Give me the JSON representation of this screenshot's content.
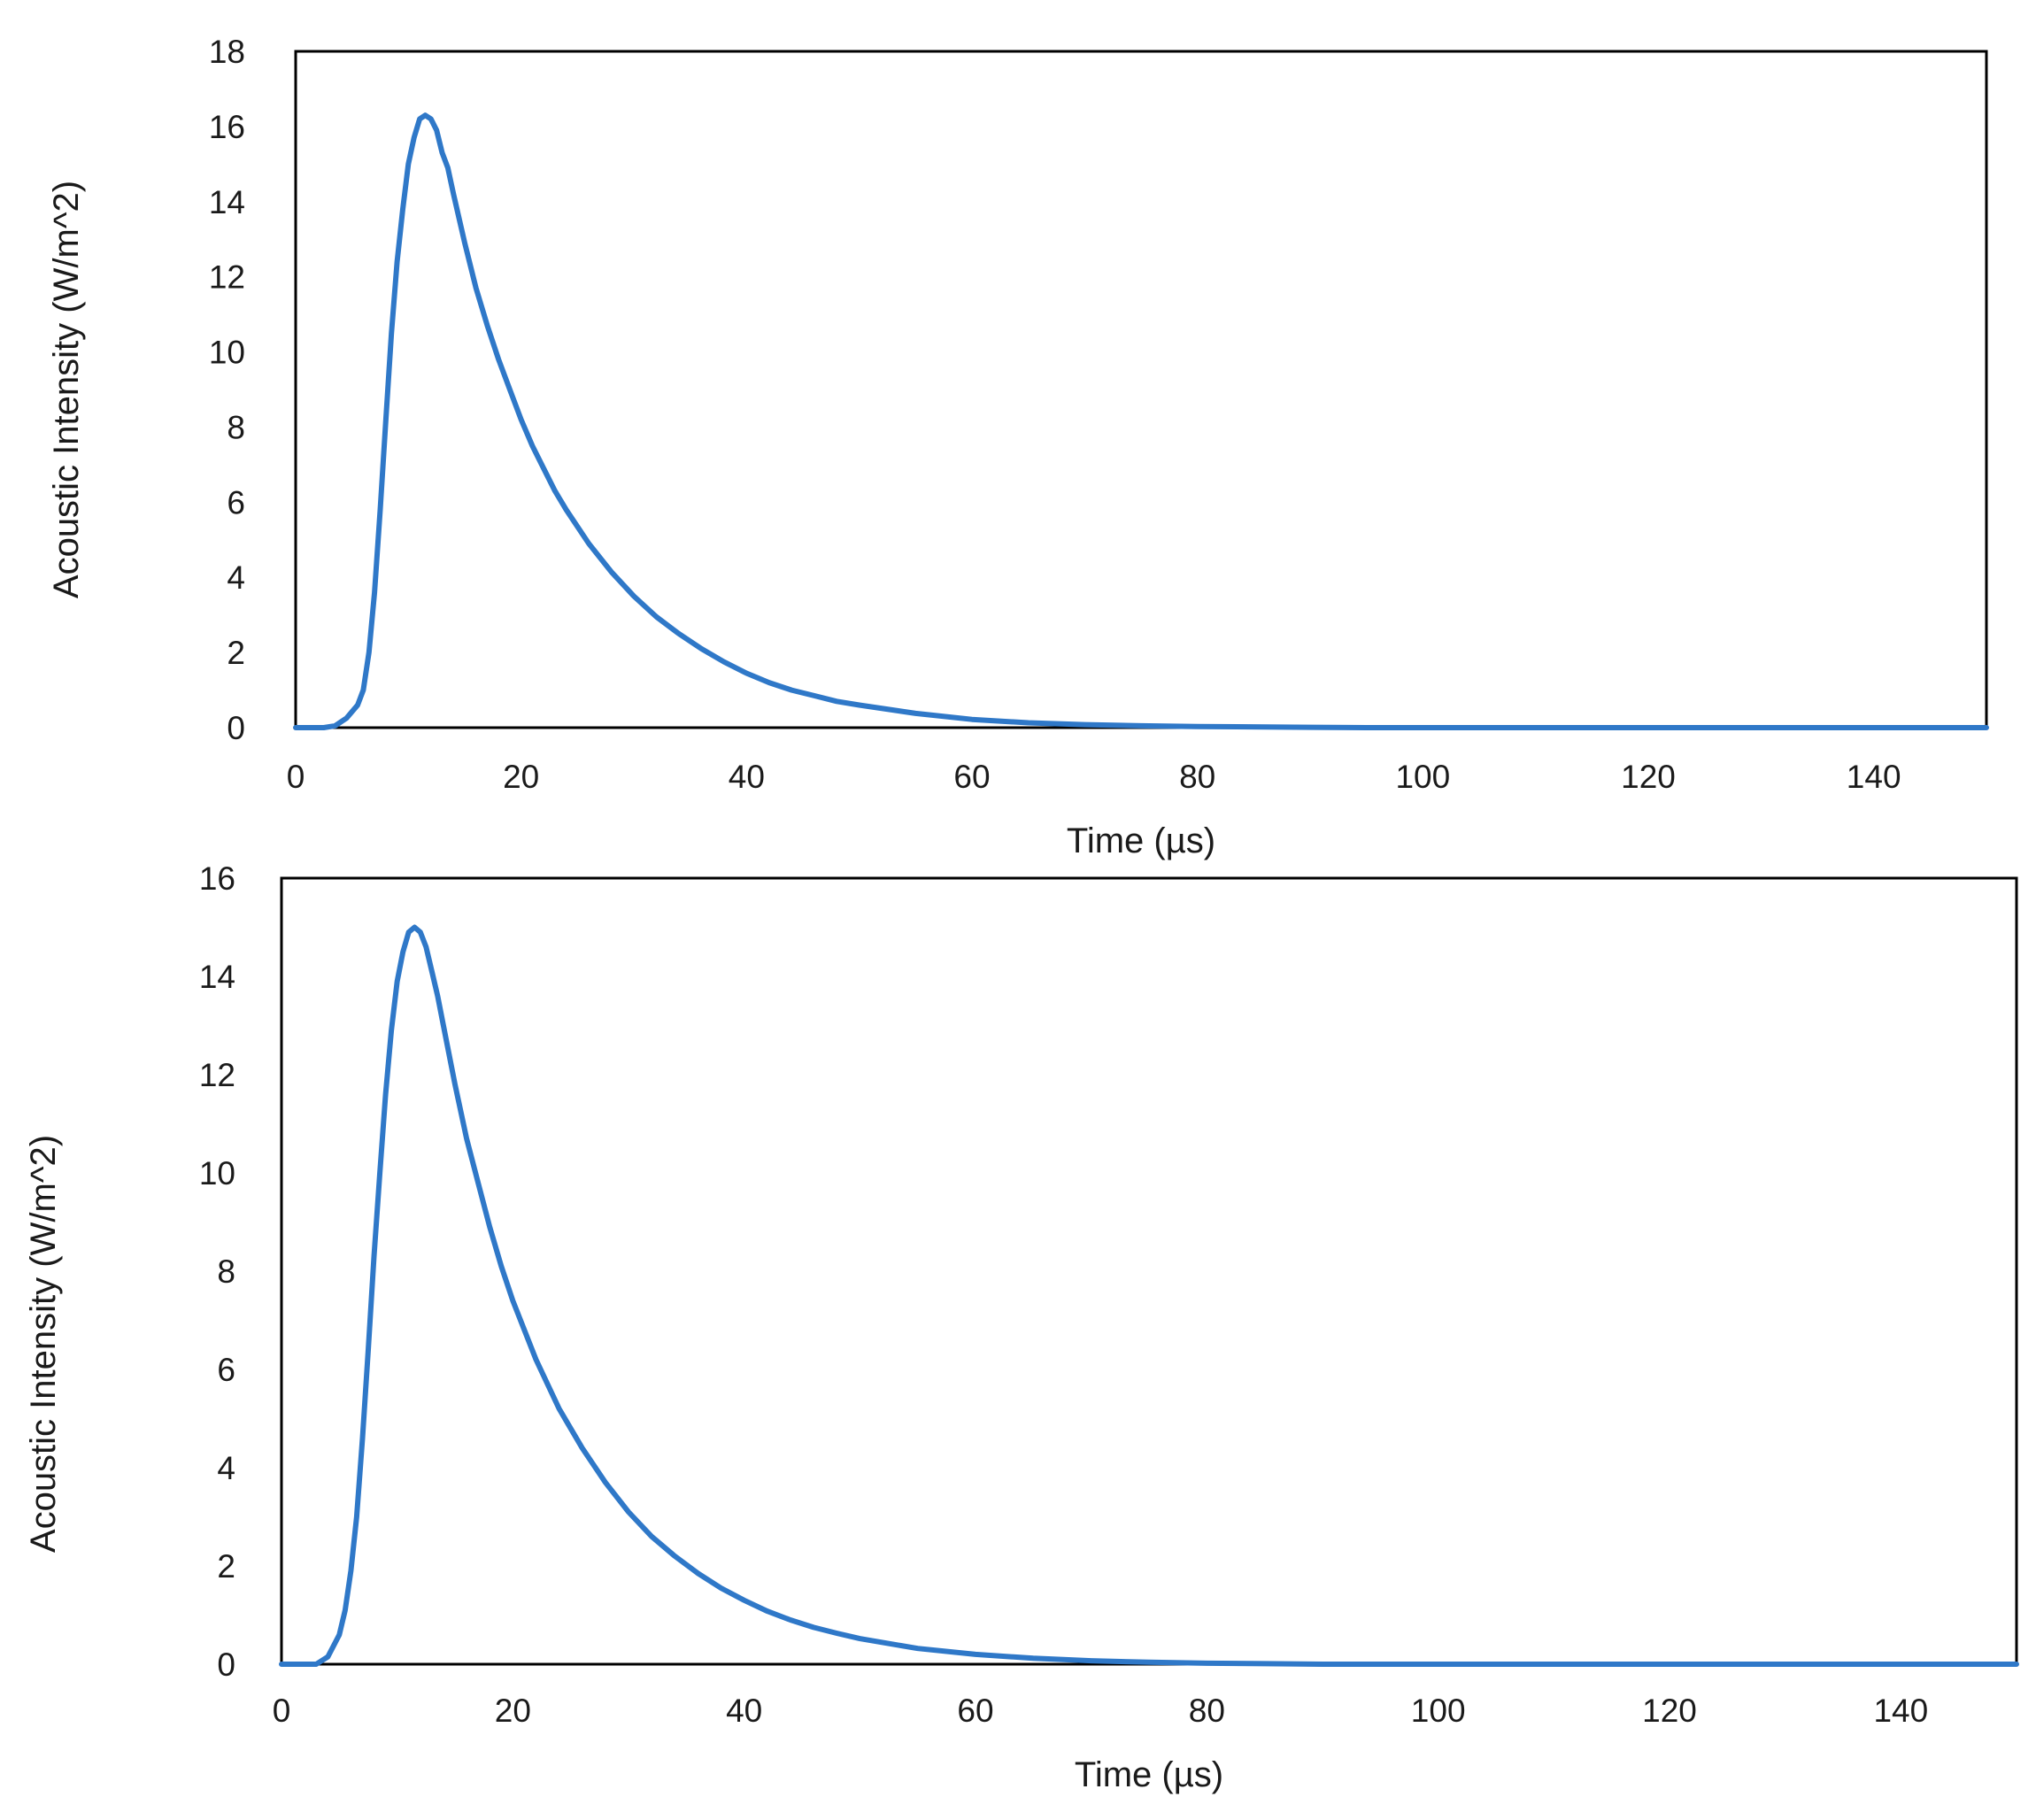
{
  "chart_data": [
    {
      "type": "line",
      "title": "",
      "xlabel": "Time (µs)",
      "ylabel": "Acoustic Intensity (W/m^2)",
      "xlim": [
        0,
        150
      ],
      "ylim": [
        0,
        18
      ],
      "xticks": [
        "0",
        "20",
        "40",
        "60",
        "80",
        "100",
        "120",
        "140"
      ],
      "yticks": [
        "0",
        "2",
        "4",
        "6",
        "8",
        "10",
        "12",
        "14",
        "16",
        "18"
      ],
      "grid": false,
      "legend": "none",
      "line_color": "#2f78c8",
      "series": [
        {
          "x": [
            0,
            2.5,
            3.5,
            4.5,
            5.5,
            6,
            6.5,
            7,
            7.5,
            8,
            8.5,
            9,
            9.5,
            10,
            10.5,
            11,
            11.5,
            12,
            12.5,
            13,
            13.5,
            14,
            15,
            16,
            17,
            18,
            19,
            20,
            21,
            22,
            23,
            24,
            26,
            28,
            30,
            32,
            34,
            36,
            38,
            40,
            42,
            44,
            46,
            48,
            50,
            55,
            60,
            65,
            70,
            75,
            80,
            90,
            95,
            100,
            120,
            150
          ],
          "y": [
            0,
            0,
            0.05,
            0.25,
            0.6,
            1.0,
            2.0,
            3.6,
            5.8,
            8.2,
            10.5,
            12.4,
            13.8,
            15.0,
            15.7,
            16.2,
            16.3,
            16.2,
            15.9,
            15.3,
            14.9,
            14.2,
            12.9,
            11.7,
            10.7,
            9.8,
            9.0,
            8.2,
            7.5,
            6.9,
            6.3,
            5.8,
            4.9,
            4.15,
            3.5,
            2.95,
            2.5,
            2.1,
            1.75,
            1.45,
            1.2,
            1.0,
            0.85,
            0.7,
            0.6,
            0.38,
            0.22,
            0.13,
            0.08,
            0.05,
            0.03,
            0.01,
            0,
            0,
            0,
            0
          ]
        }
      ]
    },
    {
      "type": "line",
      "title": "",
      "xlabel": "Time (µs)",
      "ylabel": "Acoustic Intensity (W/m^2)",
      "xlim": [
        0,
        150
      ],
      "ylim": [
        0,
        16
      ],
      "xticks": [
        "0",
        "20",
        "40",
        "60",
        "80",
        "100",
        "120",
        "140"
      ],
      "yticks": [
        "0",
        "2",
        "4",
        "6",
        "8",
        "10",
        "12",
        "14",
        "16"
      ],
      "grid": false,
      "legend": "none",
      "line_color": "#2f78c8",
      "series": [
        {
          "x": [
            0,
            3,
            4,
            5,
            5.5,
            6,
            6.5,
            7,
            7.5,
            8,
            8.5,
            9,
            9.5,
            10,
            10.5,
            11,
            11.5,
            12,
            12.5,
            13,
            13.5,
            14,
            15,
            16,
            17,
            18,
            19,
            20,
            22,
            24,
            26,
            28,
            30,
            32,
            34,
            36,
            38,
            40,
            42,
            44,
            46,
            48,
            50,
            55,
            60,
            65,
            70,
            75,
            80,
            85,
            90,
            100,
            150
          ],
          "y": [
            0,
            0,
            0.15,
            0.6,
            1.1,
            1.9,
            3.0,
            4.6,
            6.4,
            8.3,
            10.0,
            11.6,
            12.9,
            13.9,
            14.5,
            14.9,
            15.0,
            14.9,
            14.6,
            14.1,
            13.6,
            13.0,
            11.8,
            10.7,
            9.8,
            8.9,
            8.1,
            7.4,
            6.2,
            5.2,
            4.4,
            3.7,
            3.1,
            2.6,
            2.2,
            1.85,
            1.55,
            1.3,
            1.08,
            0.9,
            0.75,
            0.63,
            0.52,
            0.32,
            0.2,
            0.12,
            0.07,
            0.04,
            0.02,
            0.01,
            0,
            0,
            0
          ]
        }
      ]
    }
  ]
}
